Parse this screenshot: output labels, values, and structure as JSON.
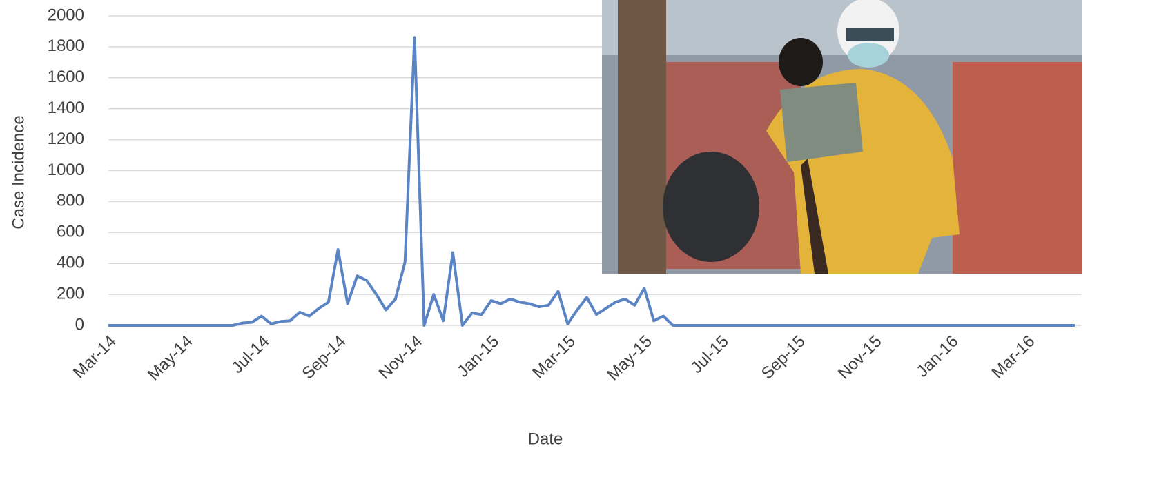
{
  "chart_data": {
    "type": "line",
    "y_label": "Case Incidence",
    "x_label": "Date",
    "color": "#5b84c4",
    "grid": true,
    "ylim": [
      0,
      2000
    ],
    "yticks": [
      0,
      200,
      400,
      600,
      800,
      1000,
      1200,
      1400,
      1600,
      1800,
      2000
    ],
    "categories": [
      "Mar-14",
      null,
      null,
      null,
      null,
      null,
      null,
      null,
      "May-14",
      null,
      null,
      null,
      null,
      null,
      null,
      null,
      "Jul-14",
      null,
      null,
      null,
      null,
      null,
      null,
      null,
      "Sep-14",
      null,
      null,
      null,
      null,
      null,
      null,
      null,
      "Nov-14",
      null,
      null,
      null,
      null,
      null,
      null,
      null,
      "Jan-15",
      null,
      null,
      null,
      null,
      null,
      null,
      null,
      "Mar-15",
      null,
      null,
      null,
      null,
      null,
      null,
      null,
      "May-15",
      null,
      null,
      null,
      null,
      null,
      null,
      null,
      "Jul-15",
      null,
      null,
      null,
      null,
      null,
      null,
      null,
      "Sep-15",
      null,
      null,
      null,
      null,
      null,
      null,
      null,
      "Nov-15",
      null,
      null,
      null,
      null,
      null,
      null,
      null,
      "Jan-16",
      null,
      null,
      null,
      null,
      null,
      null,
      null,
      "Mar-16",
      null,
      null,
      null,
      null,
      null
    ],
    "values": [
      0,
      0,
      0,
      0,
      0,
      0,
      0,
      0,
      0,
      0,
      0,
      0,
      0,
      0,
      15,
      20,
      60,
      10,
      25,
      30,
      85,
      60,
      110,
      150,
      490,
      140,
      320,
      290,
      200,
      100,
      170,
      410,
      1860,
      0,
      200,
      30,
      470,
      0,
      80,
      70,
      160,
      140,
      170,
      150,
      140,
      120,
      130,
      220,
      10,
      100,
      180,
      70,
      110,
      150,
      170,
      130,
      240,
      30,
      60,
      0,
      0,
      0,
      0,
      0,
      0,
      0,
      0,
      0,
      0,
      0,
      0,
      0,
      0,
      0,
      0,
      0,
      0,
      0,
      0,
      0,
      0,
      0,
      0,
      0,
      0,
      0,
      0,
      0,
      0,
      0,
      0,
      0,
      0,
      0,
      0,
      0,
      0,
      0,
      0,
      0,
      0,
      0
    ]
  }
}
